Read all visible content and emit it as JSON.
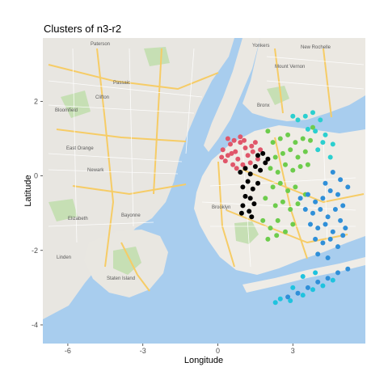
{
  "chart_data": {
    "type": "scatter",
    "title": "Clusters of n3-r2",
    "xlabel": "Longitude",
    "ylabel": "Latitude",
    "xlim": [
      -7.0,
      5.9
    ],
    "ylim": [
      -4.5,
      3.7
    ],
    "xticks": [
      -6,
      -3,
      0,
      3
    ],
    "yticks": [
      -4,
      -2,
      0,
      2
    ],
    "grid": false,
    "legend": "none",
    "background": "street map tiles",
    "colors": {
      "water": "#a8cdee",
      "land": "#eeeae4",
      "park": "#c6dfb4",
      "highway": "#f6cc66",
      "road": "#ffffff"
    },
    "map_labels": [
      "Paterson",
      "Passaic",
      "Clifton",
      "Newark",
      "East Orange",
      "Bloomfield",
      "Elizabeth",
      "Bayonne",
      "Brooklyn",
      "Linden",
      "Staten Island",
      "New Rochelle",
      "Mount Vernon",
      "Bronx",
      "Yonkers"
    ],
    "series": [
      {
        "color": "#e0566a",
        "points": [
          [
            0.4,
            0.55
          ],
          [
            0.7,
            0.65
          ],
          [
            0.5,
            0.85
          ],
          [
            0.9,
            0.9
          ],
          [
            1.1,
            0.75
          ],
          [
            0.3,
            0.4
          ],
          [
            0.8,
            0.45
          ],
          [
            1.2,
            0.55
          ],
          [
            1.4,
            0.65
          ],
          [
            0.6,
            0.3
          ],
          [
            1.0,
            0.3
          ],
          [
            1.3,
            0.35
          ],
          [
            0.2,
            0.7
          ],
          [
            1.5,
            0.9
          ],
          [
            0.9,
            1.05
          ],
          [
            0.4,
            1.0
          ],
          [
            1.6,
            0.45
          ],
          [
            0.55,
            0.6
          ],
          [
            1.05,
            0.95
          ],
          [
            0.75,
            0.2
          ],
          [
            0.15,
            0.5
          ],
          [
            1.35,
            0.8
          ],
          [
            0.65,
            0.95
          ],
          [
            1.7,
            0.7
          ]
        ]
      },
      {
        "color": "#000000",
        "points": [
          [
            0.9,
            0.1
          ],
          [
            1.1,
            0.2
          ],
          [
            1.3,
            0.05
          ],
          [
            1.5,
            0.25
          ],
          [
            1.7,
            0.15
          ],
          [
            1.9,
            0.35
          ],
          [
            1.2,
            -0.15
          ],
          [
            1.0,
            -0.3
          ],
          [
            1.4,
            -0.35
          ],
          [
            1.6,
            -0.2
          ],
          [
            1.1,
            -0.55
          ],
          [
            1.3,
            -0.6
          ],
          [
            1.0,
            -0.8
          ],
          [
            1.25,
            -0.95
          ],
          [
            1.45,
            -0.75
          ],
          [
            0.95,
            -1.0
          ],
          [
            1.6,
            0.55
          ],
          [
            1.8,
            0.6
          ],
          [
            2.0,
            0.45
          ],
          [
            1.35,
            -1.1
          ]
        ]
      },
      {
        "color": "#6dcc4c",
        "points": [
          [
            2.2,
            0.9
          ],
          [
            2.5,
            1.0
          ],
          [
            2.8,
            1.1
          ],
          [
            3.1,
            0.9
          ],
          [
            3.4,
            1.0
          ],
          [
            2.3,
            0.5
          ],
          [
            2.6,
            0.6
          ],
          [
            2.9,
            0.7
          ],
          [
            3.2,
            0.5
          ],
          [
            3.5,
            0.65
          ],
          [
            2.1,
            0.2
          ],
          [
            2.4,
            0.1
          ],
          [
            2.7,
            0.3
          ],
          [
            3.0,
            0.15
          ],
          [
            3.3,
            0.25
          ],
          [
            2.2,
            -0.3
          ],
          [
            2.5,
            -0.2
          ],
          [
            2.8,
            -0.4
          ],
          [
            3.1,
            -0.3
          ],
          [
            3.6,
            0.3
          ],
          [
            1.9,
            -0.6
          ],
          [
            2.3,
            -0.8
          ],
          [
            2.6,
            -0.7
          ],
          [
            2.9,
            -0.9
          ],
          [
            3.2,
            -0.75
          ],
          [
            1.8,
            -1.2
          ],
          [
            2.1,
            -1.4
          ],
          [
            2.4,
            -1.2
          ],
          [
            2.7,
            -1.5
          ],
          [
            3.0,
            -1.3
          ],
          [
            3.7,
            0.95
          ],
          [
            3.8,
            1.3
          ],
          [
            2.0,
            1.2
          ],
          [
            3.5,
            -0.5
          ],
          [
            2.0,
            -1.7
          ],
          [
            2.35,
            -1.6
          ]
        ]
      },
      {
        "color": "#2bcfcf",
        "points": [
          [
            3.2,
            1.5
          ],
          [
            3.5,
            1.6
          ],
          [
            3.8,
            1.7
          ],
          [
            4.1,
            1.5
          ],
          [
            3.9,
            1.2
          ],
          [
            4.3,
            1.1
          ],
          [
            3.0,
            1.6
          ],
          [
            4.2,
            0.9
          ],
          [
            4.6,
            0.85
          ],
          [
            3.6,
            1.25
          ],
          [
            4.0,
            0.7
          ],
          [
            4.5,
            0.5
          ]
        ]
      },
      {
        "color": "#2f8fd8",
        "points": [
          [
            3.3,
            -0.6
          ],
          [
            3.6,
            -0.5
          ],
          [
            3.9,
            -0.7
          ],
          [
            4.2,
            -0.6
          ],
          [
            4.5,
            -0.4
          ],
          [
            4.8,
            -0.5
          ],
          [
            3.5,
            -0.9
          ],
          [
            3.8,
            -1.0
          ],
          [
            4.1,
            -0.9
          ],
          [
            4.4,
            -1.1
          ],
          [
            4.7,
            -0.9
          ],
          [
            5.0,
            -0.8
          ],
          [
            3.7,
            -1.3
          ],
          [
            4.0,
            -1.4
          ],
          [
            4.3,
            -1.3
          ],
          [
            4.6,
            -1.5
          ],
          [
            4.9,
            -1.2
          ],
          [
            5.1,
            -1.4
          ],
          [
            3.9,
            -1.7
          ],
          [
            4.2,
            -1.8
          ],
          [
            4.5,
            -1.7
          ],
          [
            4.8,
            -1.9
          ],
          [
            5.0,
            -1.6
          ],
          [
            4.3,
            -0.2
          ],
          [
            4.6,
            0.1
          ],
          [
            4.9,
            -0.1
          ],
          [
            5.2,
            -0.3
          ],
          [
            4.0,
            -2.1
          ],
          [
            4.4,
            -2.2
          ],
          [
            3.6,
            -3.0
          ],
          [
            4.0,
            -2.85
          ],
          [
            4.4,
            -2.75
          ],
          [
            4.8,
            -2.6
          ],
          [
            3.2,
            -3.15
          ],
          [
            2.8,
            -3.25
          ],
          [
            5.2,
            -2.5
          ]
        ]
      },
      {
        "color": "#1fc3de",
        "points": [
          [
            2.5,
            -3.3
          ],
          [
            2.9,
            -3.35
          ],
          [
            3.4,
            -3.2
          ],
          [
            3.8,
            -3.05
          ],
          [
            4.2,
            -2.95
          ],
          [
            4.6,
            -2.8
          ],
          [
            3.0,
            -3.0
          ],
          [
            3.9,
            -2.6
          ],
          [
            3.4,
            -2.7
          ],
          [
            2.3,
            -3.4
          ]
        ]
      }
    ]
  }
}
